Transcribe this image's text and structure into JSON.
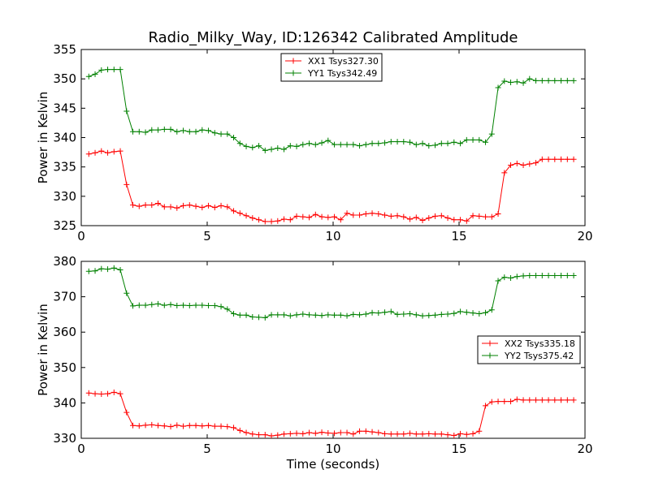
{
  "chart_data": [
    {
      "type": "line",
      "title": "Radio_Milky_Way, ID:126342 Calibrated Amplitude",
      "xlabel": "",
      "ylabel": "Power in Kelvin",
      "xlim": [
        0,
        20
      ],
      "ylim": [
        325,
        355
      ],
      "xticks": [
        "0",
        "5",
        "10",
        "15",
        "20"
      ],
      "yticks": [
        "325",
        "330",
        "335",
        "340",
        "345",
        "350",
        "355"
      ],
      "legend_position": "top-center",
      "grid": false,
      "x": [
        0.3,
        0.55,
        0.8,
        1.05,
        1.3,
        1.55,
        1.8,
        2.05,
        2.3,
        2.55,
        2.8,
        3.05,
        3.3,
        3.55,
        3.8,
        4.05,
        4.3,
        4.55,
        4.8,
        5.05,
        5.3,
        5.55,
        5.8,
        6.05,
        6.3,
        6.55,
        6.8,
        7.05,
        7.3,
        7.55,
        7.8,
        8.05,
        8.3,
        8.55,
        8.8,
        9.05,
        9.3,
        9.55,
        9.8,
        10.05,
        10.3,
        10.55,
        10.8,
        11.05,
        11.3,
        11.55,
        11.8,
        12.05,
        12.3,
        12.55,
        12.8,
        13.05,
        13.3,
        13.55,
        13.8,
        14.05,
        14.3,
        14.55,
        14.8,
        15.05,
        15.3,
        15.55,
        15.8,
        16.05,
        16.3,
        16.55,
        16.8,
        17.05,
        17.3,
        17.55,
        17.8,
        18.05,
        18.3,
        18.55,
        18.8,
        19.05,
        19.3,
        19.55
      ],
      "series": [
        {
          "name": "XX1 Tsys327.30",
          "color": "#ff0000",
          "values": [
            337.2,
            337.4,
            337.7,
            337.4,
            337.6,
            337.7,
            332.0,
            328.5,
            328.3,
            328.5,
            328.5,
            328.8,
            328.2,
            328.2,
            328.0,
            328.4,
            328.5,
            328.3,
            328.1,
            328.4,
            328.1,
            328.4,
            328.2,
            327.5,
            327.1,
            326.7,
            326.3,
            326.0,
            325.7,
            325.7,
            325.8,
            326.1,
            326.0,
            326.6,
            326.5,
            326.4,
            326.9,
            326.5,
            326.4,
            326.5,
            326.0,
            327.1,
            326.8,
            326.8,
            327.0,
            327.1,
            327.0,
            326.8,
            326.6,
            326.7,
            326.5,
            326.1,
            326.4,
            325.9,
            326.3,
            326.6,
            326.7,
            326.3,
            326.0,
            326.0,
            325.8,
            326.7,
            326.6,
            326.5,
            326.5,
            327.0,
            334.0,
            335.3,
            335.6,
            335.3,
            335.5,
            335.7,
            336.3,
            336.3,
            336.3,
            336.3,
            336.3,
            336.3
          ]
        },
        {
          "name": "YY1 Tsys342.49",
          "color": "#008000",
          "values": [
            350.4,
            350.8,
            351.5,
            351.6,
            351.6,
            351.6,
            344.5,
            341.0,
            341.0,
            340.9,
            341.3,
            341.3,
            341.4,
            341.4,
            341.0,
            341.2,
            341.0,
            341.0,
            341.3,
            341.2,
            340.8,
            340.6,
            340.6,
            340.0,
            339.0,
            338.5,
            338.3,
            338.6,
            337.8,
            338.0,
            338.2,
            338.0,
            338.6,
            338.5,
            338.8,
            339.0,
            338.8,
            339.1,
            339.5,
            338.8,
            338.8,
            338.8,
            338.8,
            338.6,
            338.8,
            339.0,
            339.0,
            339.1,
            339.3,
            339.3,
            339.3,
            339.2,
            338.8,
            339.0,
            338.6,
            338.7,
            339.0,
            339.0,
            339.2,
            339.0,
            339.6,
            339.6,
            339.6,
            339.2,
            340.6,
            348.5,
            349.6,
            349.4,
            349.5,
            349.3,
            350.0,
            349.7,
            349.7,
            349.7,
            349.7,
            349.7,
            349.7,
            349.7
          ]
        }
      ]
    },
    {
      "type": "line",
      "title": "",
      "xlabel": "Time (seconds)",
      "ylabel": "Power in Kelvin",
      "xlim": [
        0,
        20
      ],
      "ylim": [
        330,
        380
      ],
      "xticks": [
        "0",
        "5",
        "10",
        "15",
        "20"
      ],
      "yticks": [
        "330",
        "340",
        "350",
        "360",
        "370",
        "380"
      ],
      "legend_position": "center-right",
      "grid": false,
      "x": [
        0.3,
        0.55,
        0.8,
        1.05,
        1.3,
        1.55,
        1.8,
        2.05,
        2.3,
        2.55,
        2.8,
        3.05,
        3.3,
        3.55,
        3.8,
        4.05,
        4.3,
        4.55,
        4.8,
        5.05,
        5.3,
        5.55,
        5.8,
        6.05,
        6.3,
        6.55,
        6.8,
        7.05,
        7.3,
        7.55,
        7.8,
        8.05,
        8.3,
        8.55,
        8.8,
        9.05,
        9.3,
        9.55,
        9.8,
        10.05,
        10.3,
        10.55,
        10.8,
        11.05,
        11.3,
        11.55,
        11.8,
        12.05,
        12.3,
        12.55,
        12.8,
        13.05,
        13.3,
        13.55,
        13.8,
        14.05,
        14.3,
        14.55,
        14.8,
        15.05,
        15.3,
        15.55,
        15.8,
        16.05,
        16.3,
        16.55,
        16.8,
        17.05,
        17.3,
        17.55,
        17.8,
        18.05,
        18.3,
        18.55,
        18.8,
        19.05,
        19.3,
        19.55
      ],
      "series": [
        {
          "name": "XX2 Tsys335.18",
          "color": "#ff0000",
          "values": [
            342.8,
            342.6,
            342.5,
            342.6,
            343.0,
            342.6,
            337.3,
            333.6,
            333.5,
            333.7,
            333.8,
            333.6,
            333.5,
            333.3,
            333.7,
            333.4,
            333.6,
            333.6,
            333.5,
            333.6,
            333.4,
            333.4,
            333.3,
            333.0,
            332.2,
            331.6,
            331.2,
            331.0,
            331.0,
            330.7,
            330.9,
            331.2,
            331.3,
            331.4,
            331.3,
            331.6,
            331.4,
            331.7,
            331.5,
            331.4,
            331.6,
            331.6,
            331.2,
            332.0,
            332.0,
            331.8,
            331.6,
            331.3,
            331.2,
            331.2,
            331.2,
            331.4,
            331.2,
            331.2,
            331.3,
            331.2,
            331.2,
            331.0,
            330.8,
            331.3,
            331.1,
            331.3,
            332.0,
            339.2,
            340.3,
            340.4,
            340.4,
            340.4,
            341.0,
            340.8,
            340.8,
            340.8,
            340.8,
            340.8,
            340.8,
            340.8,
            340.8,
            340.8
          ]
        },
        {
          "name": "YY2 Tsys375.42",
          "color": "#008000",
          "values": [
            377.2,
            377.3,
            377.9,
            377.8,
            378.1,
            377.6,
            371.0,
            367.4,
            367.6,
            367.6,
            367.8,
            368.0,
            367.6,
            367.8,
            367.5,
            367.6,
            367.5,
            367.6,
            367.6,
            367.5,
            367.5,
            367.2,
            366.5,
            365.2,
            364.8,
            364.8,
            364.3,
            364.2,
            364.1,
            364.9,
            364.9,
            364.9,
            364.6,
            364.9,
            365.1,
            364.9,
            364.8,
            364.7,
            364.9,
            364.8,
            364.8,
            364.6,
            365.0,
            364.9,
            365.1,
            365.5,
            365.4,
            365.6,
            365.8,
            365.0,
            365.1,
            365.2,
            364.9,
            364.6,
            364.7,
            364.8,
            365.0,
            365.1,
            365.3,
            365.8,
            365.6,
            365.4,
            365.2,
            365.5,
            366.3,
            374.5,
            375.5,
            375.3,
            375.7,
            375.9,
            376.0,
            376.0,
            376.0,
            376.0,
            376.0,
            376.0,
            376.0,
            376.0
          ]
        }
      ]
    }
  ]
}
